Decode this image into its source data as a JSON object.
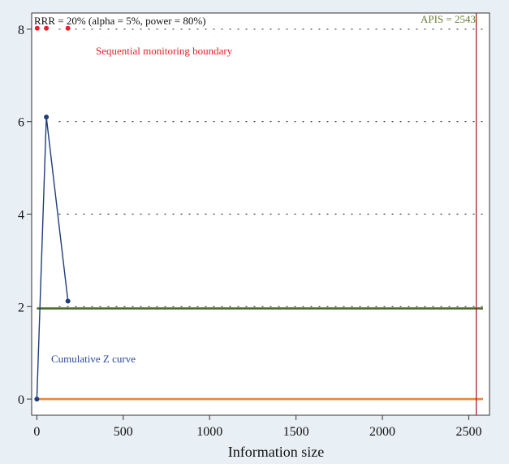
{
  "colors": {
    "background": "#e8f0f5",
    "plot_background": "#ffffff",
    "z_curve": "#1f3d7a",
    "boundary_points": "#e8202a",
    "boundary_text": "#e8202a",
    "conventional_line": "#4a6a2a",
    "zero_line": "#e8883a",
    "apis_line": "#a01818",
    "apis_text": "#6b7a3a",
    "z_curve_text": "#2a4a9a"
  },
  "chart_data": {
    "type": "line",
    "title": "",
    "xlabel": "Information size",
    "ylabel": "",
    "xlim": [
      -30,
      2620
    ],
    "ylim": [
      -0.35,
      8.35
    ],
    "x_ticks": [
      0,
      500,
      1000,
      1500,
      2000,
      2500
    ],
    "y_ticks": [
      0,
      2,
      4,
      6,
      8
    ],
    "grid": "horizontal dotted",
    "series": [
      {
        "name": "Cumulative Z curve",
        "x": [
          0,
          55,
          180
        ],
        "y": [
          0,
          6.1,
          2.12
        ],
        "color": "#1f3d7a"
      },
      {
        "name": "Sequential monitoring boundary",
        "x": [
          2,
          55,
          180
        ],
        "y": [
          8.02,
          8.02,
          8.02
        ],
        "color": "#e8202a",
        "style": "points"
      }
    ],
    "reference_lines": [
      {
        "axis": "y",
        "value": 1.96,
        "color": "#4a6a2a"
      },
      {
        "axis": "y",
        "value": 0,
        "color": "#e8883a"
      },
      {
        "axis": "x",
        "value": 2543,
        "color": "#a01818"
      }
    ],
    "annotations": {
      "header": "RRR = 20% (alpha = 5%, power = 80%)",
      "apis": "APIS = 2543",
      "boundary_label": "Sequential monitoring boundary",
      "z_curve_label": "Cumulative Z curve"
    }
  }
}
